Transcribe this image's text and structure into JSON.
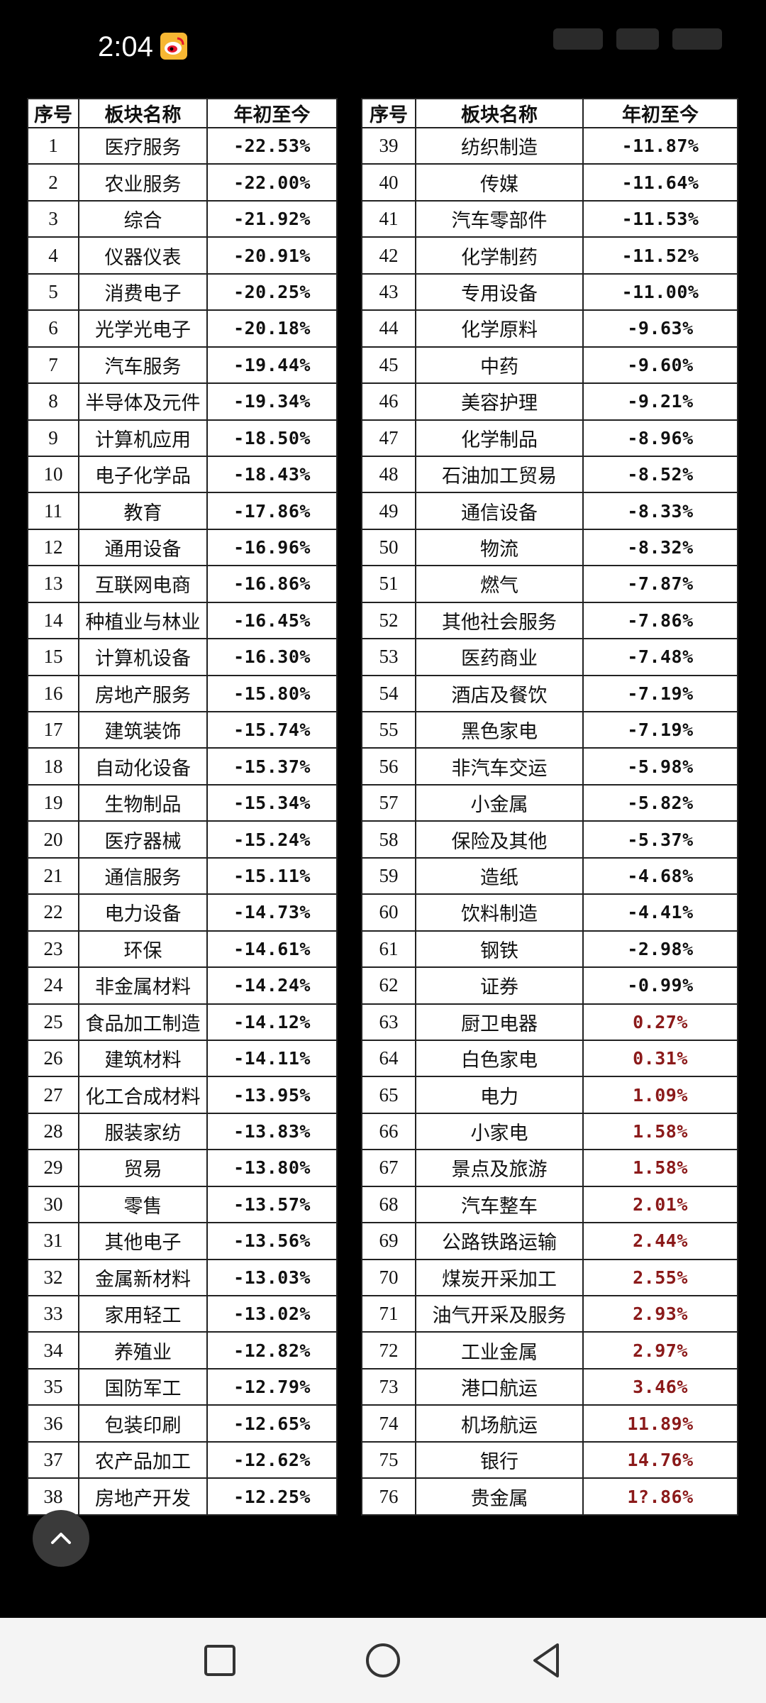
{
  "status_bar": {
    "time": "2:04",
    "app_icon": "weibo-icon"
  },
  "table": {
    "headers": {
      "index": "序号",
      "name": "板块名称",
      "ytd": "年初至今"
    },
    "left_rows": [
      {
        "n": "1",
        "name": "医疗服务",
        "v": "-22.53%"
      },
      {
        "n": "2",
        "name": "农业服务",
        "v": "-22.00%"
      },
      {
        "n": "3",
        "name": "综合",
        "v": "-21.92%"
      },
      {
        "n": "4",
        "name": "仪器仪表",
        "v": "-20.91%"
      },
      {
        "n": "5",
        "name": "消费电子",
        "v": "-20.25%"
      },
      {
        "n": "6",
        "name": "光学光电子",
        "v": "-20.18%"
      },
      {
        "n": "7",
        "name": "汽车服务",
        "v": "-19.44%"
      },
      {
        "n": "8",
        "name": "半导体及元件",
        "v": "-19.34%"
      },
      {
        "n": "9",
        "name": "计算机应用",
        "v": "-18.50%"
      },
      {
        "n": "10",
        "name": "电子化学品",
        "v": "-18.43%"
      },
      {
        "n": "11",
        "name": "教育",
        "v": "-17.86%"
      },
      {
        "n": "12",
        "name": "通用设备",
        "v": "-16.96%"
      },
      {
        "n": "13",
        "name": "互联网电商",
        "v": "-16.86%"
      },
      {
        "n": "14",
        "name": "种植业与林业",
        "v": "-16.45%"
      },
      {
        "n": "15",
        "name": "计算机设备",
        "v": "-16.30%"
      },
      {
        "n": "16",
        "name": "房地产服务",
        "v": "-15.80%"
      },
      {
        "n": "17",
        "name": "建筑装饰",
        "v": "-15.74%"
      },
      {
        "n": "18",
        "name": "自动化设备",
        "v": "-15.37%"
      },
      {
        "n": "19",
        "name": "生物制品",
        "v": "-15.34%"
      },
      {
        "n": "20",
        "name": "医疗器械",
        "v": "-15.24%"
      },
      {
        "n": "21",
        "name": "通信服务",
        "v": "-15.11%"
      },
      {
        "n": "22",
        "name": "电力设备",
        "v": "-14.73%"
      },
      {
        "n": "23",
        "name": "环保",
        "v": "-14.61%"
      },
      {
        "n": "24",
        "name": "非金属材料",
        "v": "-14.24%"
      },
      {
        "n": "25",
        "name": "食品加工制造",
        "v": "-14.12%"
      },
      {
        "n": "26",
        "name": "建筑材料",
        "v": "-14.11%"
      },
      {
        "n": "27",
        "name": "化工合成材料",
        "v": "-13.95%"
      },
      {
        "n": "28",
        "name": "服装家纺",
        "v": "-13.83%"
      },
      {
        "n": "29",
        "name": "贸易",
        "v": "-13.80%"
      },
      {
        "n": "30",
        "name": "零售",
        "v": "-13.57%"
      },
      {
        "n": "31",
        "name": "其他电子",
        "v": "-13.56%"
      },
      {
        "n": "32",
        "name": "金属新材料",
        "v": "-13.03%"
      },
      {
        "n": "33",
        "name": "家用轻工",
        "v": "-13.02%"
      },
      {
        "n": "34",
        "name": "养殖业",
        "v": "-12.82%"
      },
      {
        "n": "35",
        "name": "国防军工",
        "v": "-12.79%"
      },
      {
        "n": "36",
        "name": "包装印刷",
        "v": "-12.65%"
      },
      {
        "n": "37",
        "name": "农产品加工",
        "v": "-12.62%"
      },
      {
        "n": "38",
        "name": "房地产开发",
        "v": "-12.25%"
      }
    ],
    "right_rows": [
      {
        "n": "39",
        "name": "纺织制造",
        "v": "-11.87%"
      },
      {
        "n": "40",
        "name": "传媒",
        "v": "-11.64%"
      },
      {
        "n": "41",
        "name": "汽车零部件",
        "v": "-11.53%"
      },
      {
        "n": "42",
        "name": "化学制药",
        "v": "-11.52%"
      },
      {
        "n": "43",
        "name": "专用设备",
        "v": "-11.00%"
      },
      {
        "n": "44",
        "name": "化学原料",
        "v": "-9.63%"
      },
      {
        "n": "45",
        "name": "中药",
        "v": "-9.60%"
      },
      {
        "n": "46",
        "name": "美容护理",
        "v": "-9.21%"
      },
      {
        "n": "47",
        "name": "化学制品",
        "v": "-8.96%"
      },
      {
        "n": "48",
        "name": "石油加工贸易",
        "v": "-8.52%"
      },
      {
        "n": "49",
        "name": "通信设备",
        "v": "-8.33%"
      },
      {
        "n": "50",
        "name": "物流",
        "v": "-8.32%"
      },
      {
        "n": "51",
        "name": "燃气",
        "v": "-7.87%"
      },
      {
        "n": "52",
        "name": "其他社会服务",
        "v": "-7.86%"
      },
      {
        "n": "53",
        "name": "医药商业",
        "v": "-7.48%"
      },
      {
        "n": "54",
        "name": "酒店及餐饮",
        "v": "-7.19%"
      },
      {
        "n": "55",
        "name": "黑色家电",
        "v": "-7.19%"
      },
      {
        "n": "56",
        "name": "非汽车交运",
        "v": "-5.98%"
      },
      {
        "n": "57",
        "name": "小金属",
        "v": "-5.82%"
      },
      {
        "n": "58",
        "name": "保险及其他",
        "v": "-5.37%"
      },
      {
        "n": "59",
        "name": "造纸",
        "v": "-4.68%"
      },
      {
        "n": "60",
        "name": "饮料制造",
        "v": "-4.41%"
      },
      {
        "n": "61",
        "name": "钢铁",
        "v": "-2.98%"
      },
      {
        "n": "62",
        "name": "证券",
        "v": "-0.99%"
      },
      {
        "n": "63",
        "name": "厨卫电器",
        "v": "0.27%"
      },
      {
        "n": "64",
        "name": "白色家电",
        "v": "0.31%"
      },
      {
        "n": "65",
        "name": "电力",
        "v": "1.09%"
      },
      {
        "n": "66",
        "name": "小家电",
        "v": "1.58%"
      },
      {
        "n": "67",
        "name": "景点及旅游",
        "v": "1.58%"
      },
      {
        "n": "68",
        "name": "汽车整车",
        "v": "2.01%"
      },
      {
        "n": "69",
        "name": "公路铁路运输",
        "v": "2.44%"
      },
      {
        "n": "70",
        "name": "煤炭开采加工",
        "v": "2.55%"
      },
      {
        "n": "71",
        "name": "油气开采及服务",
        "v": "2.93%"
      },
      {
        "n": "72",
        "name": "工业金属",
        "v": "2.97%"
      },
      {
        "n": "73",
        "name": "港口航运",
        "v": "3.46%"
      },
      {
        "n": "74",
        "name": "机场航运",
        "v": "11.89%"
      },
      {
        "n": "75",
        "name": "银行",
        "v": "14.76%"
      },
      {
        "n": "76",
        "name": "贵金属",
        "v": "1?.86%"
      }
    ]
  },
  "colors": {
    "negative": "#111111",
    "positive": "#8b1a1a"
  },
  "nav": {
    "recent": "square-icon",
    "home": "circle-icon",
    "back": "triangle-back-icon"
  }
}
